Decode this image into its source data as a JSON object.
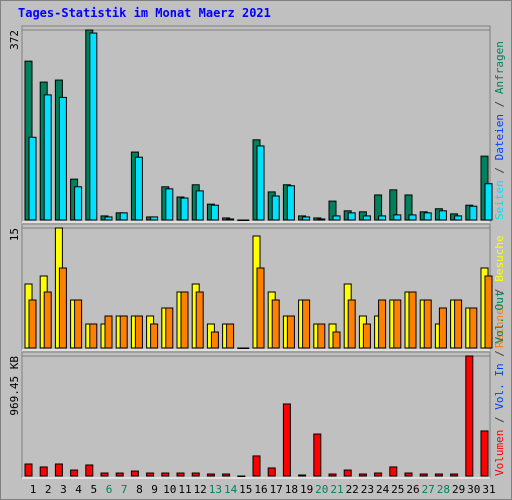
{
  "chart_data": {
    "type": "bar",
    "title": "Tages-Statistik im Monat Maerz 2021",
    "categories": [
      "1",
      "2",
      "3",
      "4",
      "5",
      "6",
      "7",
      "8",
      "9",
      "10",
      "11",
      "12",
      "13",
      "14",
      "15",
      "16",
      "17",
      "18",
      "19",
      "20",
      "21",
      "22",
      "23",
      "24",
      "25",
      "26",
      "27",
      "28",
      "29",
      "30",
      "31"
    ],
    "weekend_indices": [
      5,
      6,
      12,
      13,
      19,
      20,
      26,
      27
    ],
    "weekend_color": "#00805c",
    "weekday_color": "#000000",
    "legend_separator": "/",
    "panels": [
      {
        "ylim": [
          0,
          372
        ],
        "yticks": [
          372
        ],
        "series": [
          {
            "name": "Seiten",
            "color": "#00e0ff",
            "values": [
              162,
              245,
              240,
              65,
              366,
              6,
              14,
              123,
              6,
              61,
              43,
              57,
              29,
              2,
              0,
              145,
              47,
              67,
              6,
              2,
              8,
              14,
              8,
              8,
              10,
              10,
              14,
              18,
              8,
              27,
              71
            ]
          },
          {
            "name": "Dateien",
            "color": "#0040ff",
            "values": [
              null,
              null,
              null,
              null,
              null,
              null,
              null,
              null,
              null,
              null,
              null,
              null,
              null,
              null,
              null,
              null,
              null,
              null,
              null,
              null,
              null,
              null,
              null,
              null,
              null,
              null,
              null,
              null,
              null,
              null,
              null
            ]
          },
          {
            "name": "Anfragen",
            "color": "#00805c",
            "values": [
              311,
              270,
              274,
              80,
              372,
              8,
              14,
              133,
              6,
              65,
              45,
              69,
              31,
              4,
              0,
              157,
              55,
              69,
              8,
              4,
              37,
              18,
              16,
              49,
              59,
              49,
              16,
              22,
              12,
              29,
              125
            ]
          }
        ]
      },
      {
        "ylim": [
          0,
          15
        ],
        "yticks": [
          15
        ],
        "series": [
          {
            "name": "Rechner",
            "color": "#ff8000",
            "values": [
              6,
              7,
              10,
              6,
              3,
              4,
              4,
              4,
              3,
              5,
              7,
              7,
              2,
              3,
              0,
              10,
              6,
              4,
              6,
              3,
              2,
              6,
              3,
              6,
              6,
              7,
              6,
              5,
              6,
              5,
              9
            ]
          },
          {
            "name": "Besuche",
            "color": "#ffff00",
            "values": [
              8,
              9,
              15,
              6,
              3,
              3,
              4,
              4,
              4,
              5,
              7,
              8,
              3,
              3,
              0,
              14,
              7,
              4,
              6,
              3,
              3,
              8,
              4,
              4,
              6,
              7,
              6,
              3,
              6,
              5,
              10
            ]
          }
        ]
      },
      {
        "ylim": [
          0,
          969.45
        ],
        "yticks": [
          {
            "value": 969.45,
            "label": "969.45 KB"
          }
        ],
        "series": [
          {
            "name": "Volumen",
            "color": "#ff0000",
            "values": [
              97,
              73,
              97,
              48,
              89,
              24,
              24,
              40,
              24,
              24,
              24,
              24,
              16,
              16,
              0,
              162,
              65,
              582,
              8,
              339,
              16,
              48,
              16,
              24,
              73,
              24,
              16,
              16,
              16,
              969.45,
              364
            ]
          },
          {
            "name": "Vol. In",
            "color": "#0040ff",
            "values": [
              null,
              null,
              null,
              null,
              null,
              null,
              null,
              null,
              null,
              null,
              null,
              null,
              null,
              null,
              null,
              null,
              null,
              null,
              null,
              null,
              null,
              null,
              null,
              null,
              null,
              null,
              null,
              null,
              null,
              null,
              null
            ]
          },
          {
            "name": "Vol. Out",
            "color": "#00805c",
            "values": [
              null,
              null,
              null,
              null,
              null,
              null,
              null,
              null,
              null,
              null,
              null,
              null,
              null,
              null,
              null,
              null,
              null,
              null,
              null,
              null,
              null,
              null,
              null,
              null,
              null,
              null,
              null,
              null,
              null,
              null,
              null
            ]
          }
        ]
      }
    ]
  }
}
